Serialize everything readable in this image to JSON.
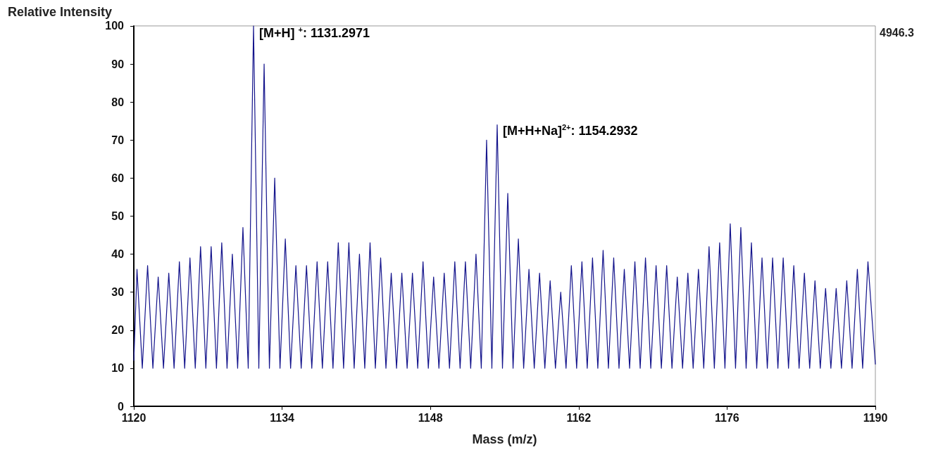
{
  "chart_data": {
    "type": "line",
    "xlabel": "Mass (m/z)",
    "ylabel": "Relative Intensity",
    "series": [
      {
        "color": "#14148c",
        "x": [
          1120,
          1120.3,
          1120.8,
          1121.3,
          1121.8,
          1122.3,
          1122.8,
          1123.3,
          1123.8,
          1124.3,
          1124.8,
          1125.3,
          1125.8,
          1126.3,
          1126.8,
          1127.3,
          1127.8,
          1128.3,
          1128.8,
          1129.3,
          1129.8,
          1130.3,
          1130.8,
          1131.3,
          1131.8,
          1132.3,
          1132.8,
          1133.3,
          1133.8,
          1134.3,
          1134.8,
          1135.3,
          1135.8,
          1136.3,
          1136.8,
          1137.3,
          1137.8,
          1138.3,
          1138.8,
          1139.3,
          1139.8,
          1140.3,
          1140.8,
          1141.3,
          1141.8,
          1142.3,
          1142.8,
          1143.3,
          1143.8,
          1144.3,
          1144.8,
          1145.3,
          1145.8,
          1146.3,
          1146.8,
          1147.3,
          1147.8,
          1148.3,
          1148.8,
          1149.3,
          1149.8,
          1150.3,
          1150.8,
          1151.3,
          1151.8,
          1152.3,
          1152.8,
          1153.3,
          1153.8,
          1154.3,
          1154.8,
          1155.3,
          1155.8,
          1156.3,
          1156.8,
          1157.3,
          1157.8,
          1158.3,
          1158.8,
          1159.3,
          1159.8,
          1160.3,
          1160.8,
          1161.3,
          1161.8,
          1162.3,
          1162.8,
          1163.3,
          1163.8,
          1164.3,
          1164.8,
          1165.3,
          1165.8,
          1166.3,
          1166.8,
          1167.3,
          1167.8,
          1168.3,
          1168.8,
          1169.3,
          1169.8,
          1170.3,
          1170.8,
          1171.3,
          1171.8,
          1172.3,
          1172.8,
          1173.3,
          1173.8,
          1174.3,
          1174.8,
          1175.3,
          1175.8,
          1176.3,
          1176.8,
          1177.3,
          1177.8,
          1178.3,
          1178.8,
          1179.3,
          1179.8,
          1180.3,
          1180.8,
          1181.3,
          1181.8,
          1182.3,
          1182.8,
          1183.3,
          1183.8,
          1184.3,
          1184.8,
          1185.3,
          1185.8,
          1186.3,
          1186.8,
          1187.3,
          1187.8,
          1188.3,
          1188.8,
          1189.3,
          1190
        ],
        "values": [
          12,
          36,
          10,
          37,
          10,
          34,
          10,
          35,
          10,
          38,
          10,
          39,
          10,
          42,
          10,
          42,
          10,
          43,
          10,
          40,
          10,
          47,
          10,
          100,
          10,
          90,
          10,
          60,
          10,
          44,
          10,
          37,
          10,
          37,
          10,
          38,
          10,
          38,
          10,
          43,
          10,
          43,
          10,
          40,
          10,
          43,
          10,
          39,
          10,
          35,
          10,
          35,
          10,
          35,
          10,
          38,
          10,
          34,
          10,
          35,
          10,
          38,
          10,
          38,
          10,
          40,
          10,
          70,
          10,
          74,
          10,
          56,
          10,
          44,
          10,
          36,
          10,
          35,
          10,
          33,
          10,
          30,
          10,
          37,
          10,
          38,
          10,
          39,
          10,
          41,
          10,
          39,
          10,
          36,
          10,
          38,
          10,
          39,
          10,
          37,
          10,
          37,
          10,
          34,
          10,
          35,
          10,
          36,
          10,
          42,
          10,
          43,
          10,
          48,
          10,
          47,
          10,
          43,
          10,
          39,
          10,
          39,
          10,
          39,
          10,
          37,
          10,
          35,
          10,
          33,
          10,
          31,
          10,
          31,
          10,
          33,
          10,
          36,
          10,
          38,
          11
        ]
      }
    ],
    "xlim": [
      1120,
      1190
    ],
    "xticks": [
      1120,
      1134,
      1148,
      1162,
      1176,
      1190
    ],
    "ylim": [
      0,
      100
    ],
    "yticks": [
      0,
      10,
      20,
      30,
      40,
      50,
      60,
      70,
      80,
      90,
      100
    ],
    "grid": false,
    "marker": "none",
    "line_style": "solid",
    "annotations": [
      {
        "text": "[M+H] $^{+}$: 1131.2971",
        "x": 1131.3,
        "y": 100
      },
      {
        "text": "[M+H+Na]$^{2+}$: 1154.2932",
        "x": 1154.3,
        "y": 74
      },
      "4946.3"
    ]
  }
}
